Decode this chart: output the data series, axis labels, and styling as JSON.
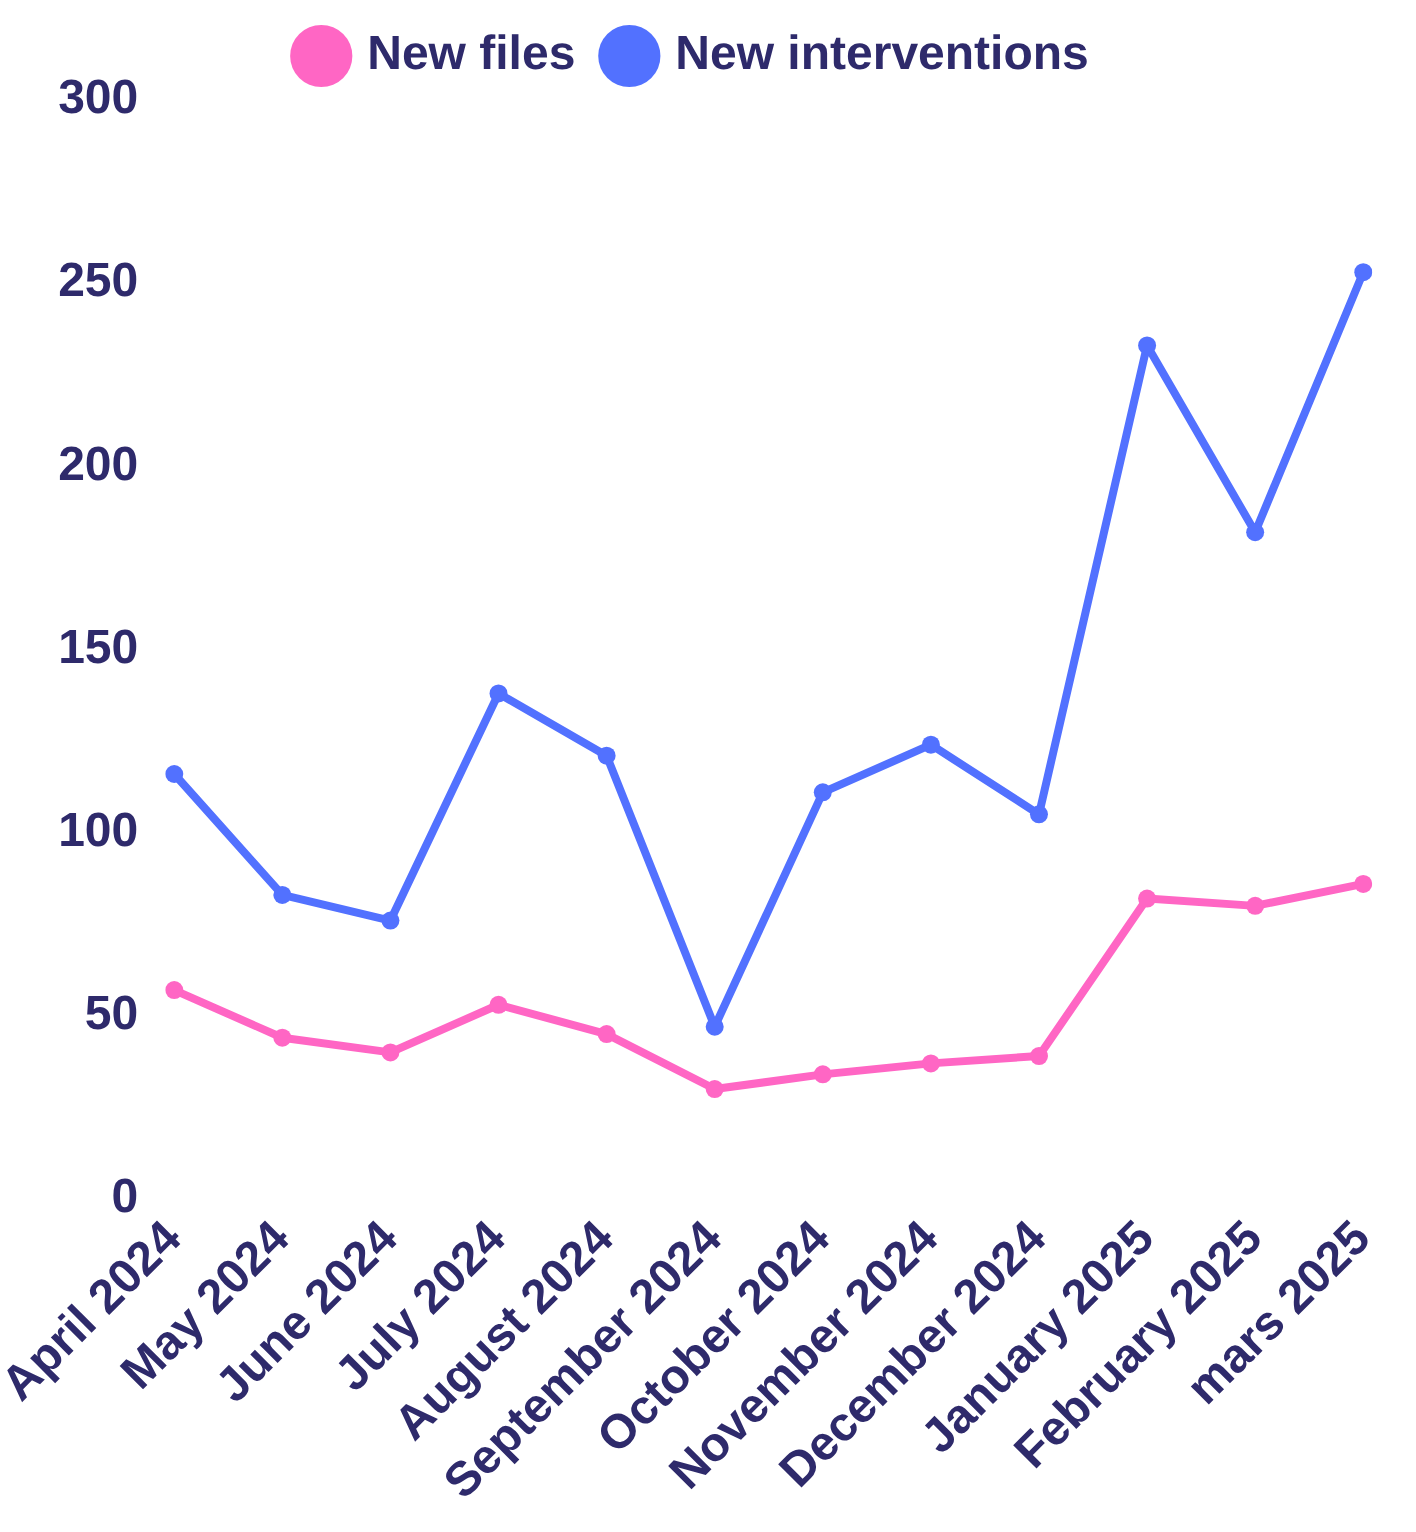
{
  "chart_data": {
    "type": "line",
    "categories": [
      "April 2024",
      "May 2024",
      "June 2024",
      "July 2024",
      "August 2024",
      "September 2024",
      "October 2024",
      "November 2024",
      "December 2024",
      "January 2025",
      "February 2025",
      "mars 2025"
    ],
    "series": [
      {
        "name": "New files",
        "color": "#ff66c4",
        "values": [
          57,
          44,
          40,
          53,
          45,
          30,
          34,
          37,
          39,
          82,
          80,
          86
        ]
      },
      {
        "name": "New interventions",
        "color": "#5271ff",
        "values": [
          116,
          83,
          76,
          138,
          121,
          47,
          111,
          124,
          105,
          233,
          182,
          253
        ]
      }
    ],
    "ylim": [
      0,
      300
    ],
    "yticks": [
      0,
      50,
      100,
      150,
      200,
      250,
      300
    ],
    "grid": false,
    "legend": "top",
    "marker": "circle",
    "line_style": "solid"
  }
}
